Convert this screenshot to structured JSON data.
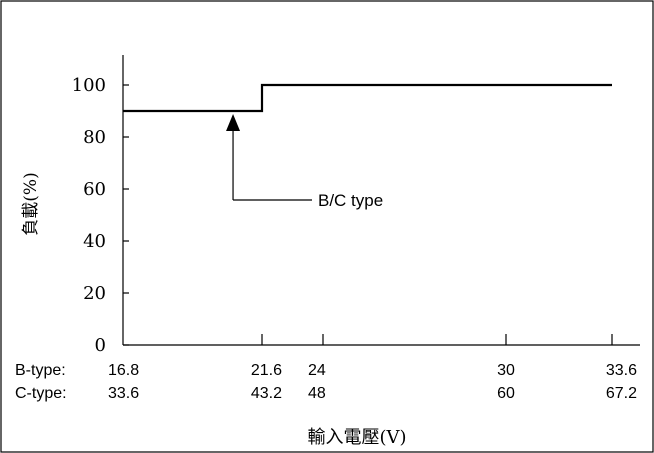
{
  "chart_data": {
    "type": "line",
    "title": "",
    "ylabel": "負載(%)",
    "xlabel": "輸入電壓(V)",
    "ylim": [
      0,
      100
    ],
    "yticks": [
      0,
      20,
      40,
      60,
      80,
      100
    ],
    "xlim": [
      16.8,
      33.6
    ],
    "x_scale_rows": [
      {
        "label": "B-type:",
        "ticks": [
          "16.8",
          "21.6",
          "24",
          "30",
          "33.6"
        ],
        "values": [
          16.8,
          21.6,
          24,
          30,
          33.6
        ]
      },
      {
        "label": "C-type:",
        "ticks": [
          "33.6",
          "43.2",
          "48",
          "60",
          "67.2"
        ],
        "values": [
          33.6,
          43.2,
          48,
          60,
          67.2
        ]
      }
    ],
    "series": [
      {
        "x": [
          16.8,
          21.6,
          21.6,
          33.6
        ],
        "y": [
          90,
          90,
          100,
          100
        ]
      }
    ],
    "annotation": {
      "text": "B/C type",
      "arrow_x": 20.6,
      "arrow_y": 90
    },
    "grid": false,
    "legend": "none"
  }
}
